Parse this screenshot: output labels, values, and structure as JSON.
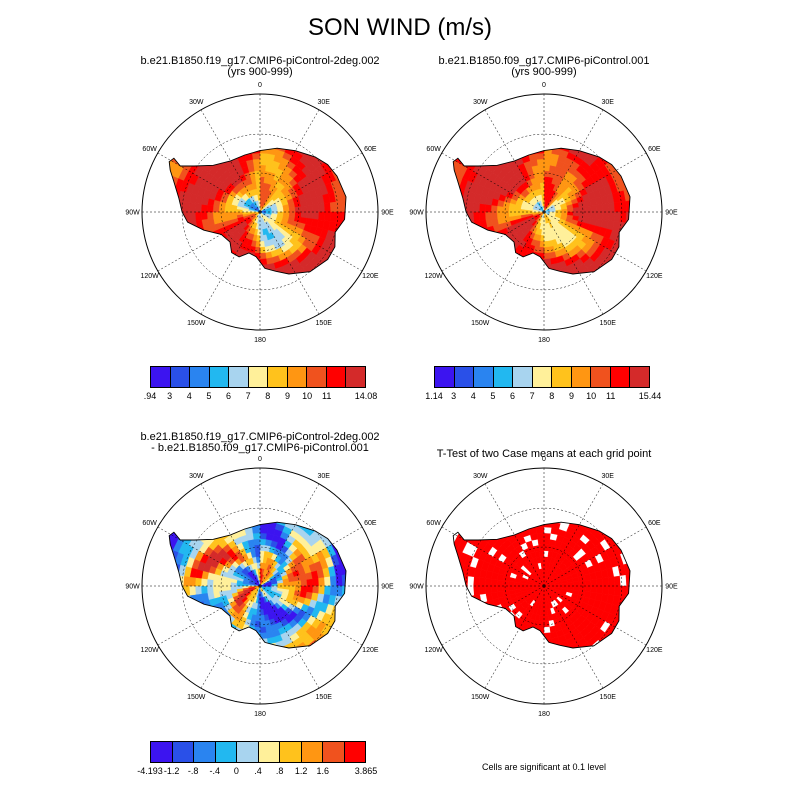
{
  "title": "SON WIND (m/s)",
  "panels": [
    {
      "title_line1": "b.e21.B1850.f19_g17.CMIP6-piControl-2deg.002",
      "title_line2": "(yrs 900-999)",
      "colorbar_colors": [
        "#3c14f0",
        "#2a50e8",
        "#2a84f0",
        "#22b8f0",
        "#a8d4ef",
        "#fff09a",
        "#ffc21c",
        "#ff9612",
        "#f0521e",
        "#ff0000",
        "#d42a2a"
      ],
      "colorbar_labels": [
        ".94",
        "3",
        "4",
        "5",
        "6",
        "7",
        "8",
        "9",
        "10",
        "11",
        "14.08"
      ],
      "pattern": "mean1"
    },
    {
      "title_line1": "b.e21.B1850.f09_g17.CMIP6-piControl.001",
      "title_line2": "(yrs 900-999)",
      "colorbar_colors": [
        "#3c14f0",
        "#2a50e8",
        "#2a84f0",
        "#22b8f0",
        "#a8d4ef",
        "#fff09a",
        "#ffc21c",
        "#ff9612",
        "#f0521e",
        "#ff0000",
        "#d42a2a"
      ],
      "colorbar_labels": [
        "1.14",
        "3",
        "4",
        "5",
        "6",
        "7",
        "8",
        "9",
        "10",
        "11",
        "15.44"
      ],
      "pattern": "mean2"
    },
    {
      "title_line1": "b.e21.B1850.f19_g17.CMIP6-piControl-2deg.002",
      "title_line2": "- b.e21.B1850.f09_g17.CMIP6-piControl.001",
      "colorbar_colors": [
        "#3c14f0",
        "#2a50e8",
        "#2a84f0",
        "#22b8f0",
        "#a8d4ef",
        "#fff09a",
        "#ffc21c",
        "#ff9612",
        "#f0521e",
        "#ff0000",
        "#d42a2a"
      ],
      "colorbar_labels": [
        "-4.193",
        "-1.2",
        "-.8",
        "-.4",
        "0",
        ".4",
        ".8",
        "1.2",
        "1.6",
        "3.865"
      ],
      "pattern": "diff"
    },
    {
      "title_line1": "T-Test of two Case means at each grid point",
      "title_line2": "",
      "note": "Cells are significant at 0.1 level",
      "pattern": "ttest"
    }
  ],
  "longitude_labels": [
    "0",
    "30E",
    "60E",
    "90E",
    "120E",
    "150E",
    "180",
    "150W",
    "120W",
    "90W",
    "60W",
    "30W"
  ],
  "colors": {
    "significant": "#ff0000"
  }
}
